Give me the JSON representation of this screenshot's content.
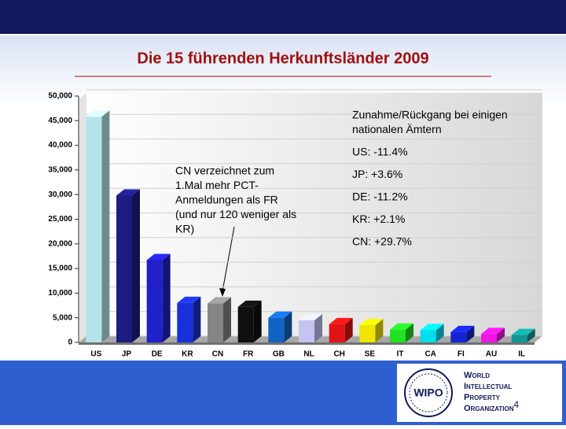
{
  "chart_data": {
    "type": "bar3d",
    "title": "Die 15 führenden Herkunftsländer 2009",
    "categories": [
      "US",
      "JP",
      "DE",
      "KR",
      "CN",
      "FR",
      "GB",
      "NL",
      "CH",
      "SE",
      "IT",
      "CA",
      "FI",
      "AU",
      "IL"
    ],
    "values": [
      45800,
      29800,
      16700,
      8000,
      7900,
      7200,
      5000,
      4500,
      3700,
      3500,
      2600,
      2500,
      2100,
      1700,
      1500
    ],
    "colors": [
      "#b4e4ea",
      "#1c1c82",
      "#2020c8",
      "#1830d8",
      "#858585",
      "#101010",
      "#1264c4",
      "#c4c4f4",
      "#e01414",
      "#f0e400",
      "#22e022",
      "#00dcec",
      "#1424d0",
      "#f014e0",
      "#149494"
    ],
    "ylim": [
      0,
      50000
    ],
    "yticks": [
      0,
      {
        "value": 5000,
        "label": "5,000"
      },
      {
        "value": 10000,
        "label": "10,000"
      },
      {
        "value": 15000,
        "label": "15,000"
      },
      {
        "value": 20000,
        "label": "20,000"
      },
      {
        "value": 25000,
        "label": "25,000"
      },
      {
        "value": 30000,
        "label": "30,000"
      },
      {
        "value": 35000,
        "label": "35,000"
      },
      {
        "value": 40000,
        "label": "40,000"
      },
      {
        "value": 45000,
        "label": "45,000"
      },
      {
        "value": 50000,
        "label": "50,000"
      }
    ],
    "annotation": [
      "CN verzeichnet zum",
      "1.Mal mehr PCT-",
      "Anmeldungen als FR",
      "(und nur 120 weniger als",
      "KR)"
    ],
    "changes_heading": [
      "Zunahme/Rückgang bei einigen",
      "nationalen Ämtern"
    ],
    "changes": [
      "US: -11.4%",
      "JP: +3.6%",
      "DE: -11.2%",
      "KR: +2.1%",
      "CN: +29.7%"
    ]
  },
  "footer": {
    "logo": "WIPO",
    "organization": [
      "World",
      "Intellectual",
      "Property",
      "Organization"
    ],
    "page_number": "4"
  }
}
